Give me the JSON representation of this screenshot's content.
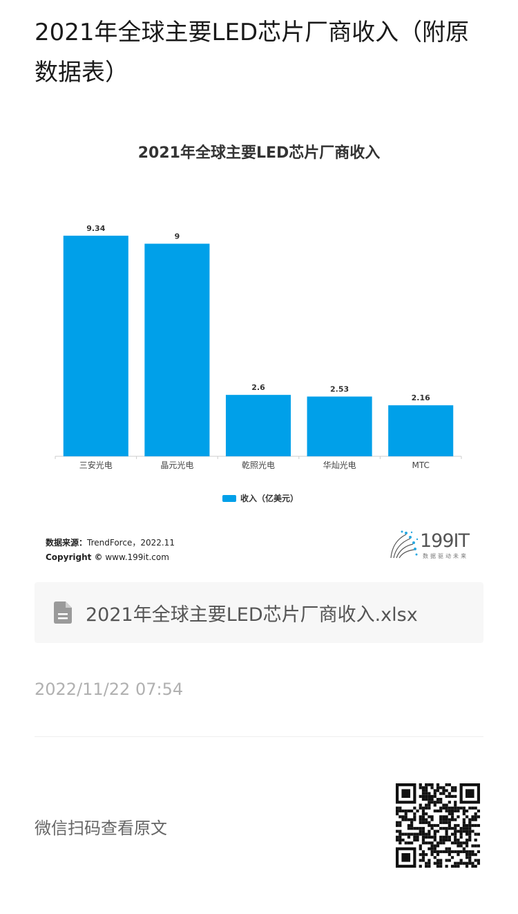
{
  "page": {
    "title": "2021年全球主要LED芯片厂商收入（附原数据表）",
    "file_name": "2021年全球主要LED芯片厂商收入.xlsx",
    "timestamp": "2022/11/22 07:54",
    "qr_hint": "微信扫码查看原文"
  },
  "source": {
    "label": "数据来源：",
    "text": "TrendForce，2022.11",
    "copyright_label": "Copyright ©",
    "copyright_text": " www.199it.com"
  },
  "logo": {
    "text": "199IT",
    "sub": "数据驱动未来"
  },
  "colors": {
    "bar": "#00a0e9",
    "axis": "#cccccc"
  },
  "icons": {
    "file": "file-icon",
    "qr": "qr-code-icon"
  },
  "chart_data": {
    "type": "bar",
    "title": "2021年全球主要LED芯片厂商收入",
    "categories": [
      "三安光电",
      "晶元光电",
      "乾照光电",
      "华灿光电",
      "MTC"
    ],
    "series": [
      {
        "name": "收入（亿美元）",
        "values": [
          9.34,
          9,
          2.6,
          2.53,
          2.16
        ]
      }
    ],
    "data_labels": [
      "9.34",
      "9",
      "2.6",
      "2.53",
      "2.16"
    ],
    "ylim": [
      0,
      9.6
    ],
    "grid": false,
    "legend": "bottom"
  }
}
